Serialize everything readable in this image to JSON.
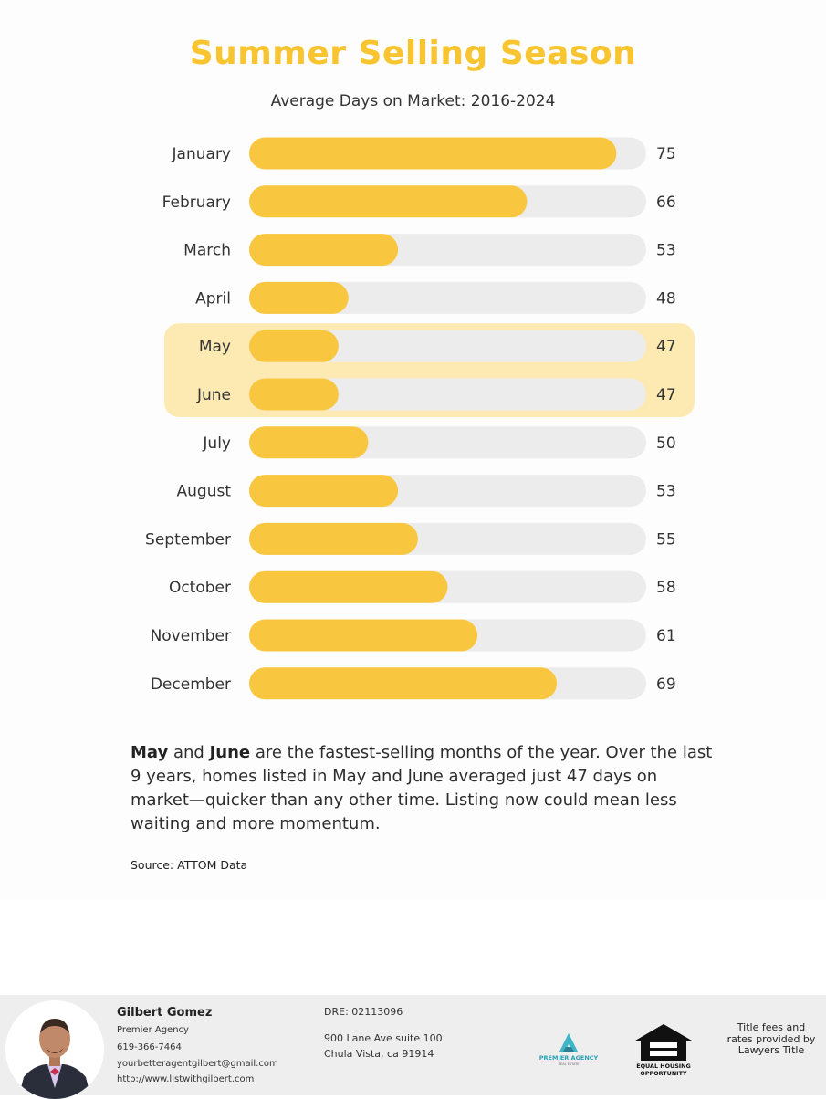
{
  "title": "Summer Selling Season",
  "subtitle": "Average Days on Market: 2016-2024",
  "chart_data": {
    "type": "bar",
    "orientation": "horizontal",
    "title": "Summer Selling Season",
    "subtitle": "Average Days on Market: 2016-2024",
    "categories": [
      "January",
      "February",
      "March",
      "April",
      "May",
      "June",
      "July",
      "August",
      "September",
      "October",
      "November",
      "December"
    ],
    "values": [
      75,
      66,
      53,
      48,
      47,
      47,
      50,
      53,
      55,
      58,
      61,
      69
    ],
    "data_labels": [
      "75",
      "66",
      "53",
      "48",
      "47",
      "47",
      "50",
      "53",
      "55",
      "58",
      "61",
      "69"
    ],
    "highlighted": [
      "May",
      "June"
    ],
    "xlim": [
      38,
      78
    ],
    "bar_color": "#f9c63f",
    "track_color": "#ececec",
    "highlight_color": "#fdeab3",
    "xlabel": "",
    "ylabel": ""
  },
  "caption": {
    "bold1": "May",
    "and": " and ",
    "bold2": "June",
    "rest": " are the fastest-selling months of the year.  Over the last 9 years, homes listed in May and June averaged just 47 days on market—quicker than any other time. Listing now could mean less waiting and more momentum."
  },
  "source": "Source: ATTOM Data",
  "footer": {
    "agent_name": "Gilbert Gomez",
    "agency": "Premier Agency",
    "phone": "619-366-7464",
    "email": "yourbetteragentgilbert@gmail.com",
    "website": "http://www.listwithgilbert.com",
    "dre": "DRE: 02113096",
    "address1": "900 Lane Ave suite 100",
    "address2": "Chula Vista, ca 91914",
    "logo_premier_line1": "PREMIER AGENCY",
    "logo_premier_line2": "REAL ESTATE",
    "eho_line1": "EQUAL HOUSING",
    "eho_line2": "OPPORTUNITY",
    "disclaimer": "Title fees and rates provided by Lawyers Title"
  }
}
